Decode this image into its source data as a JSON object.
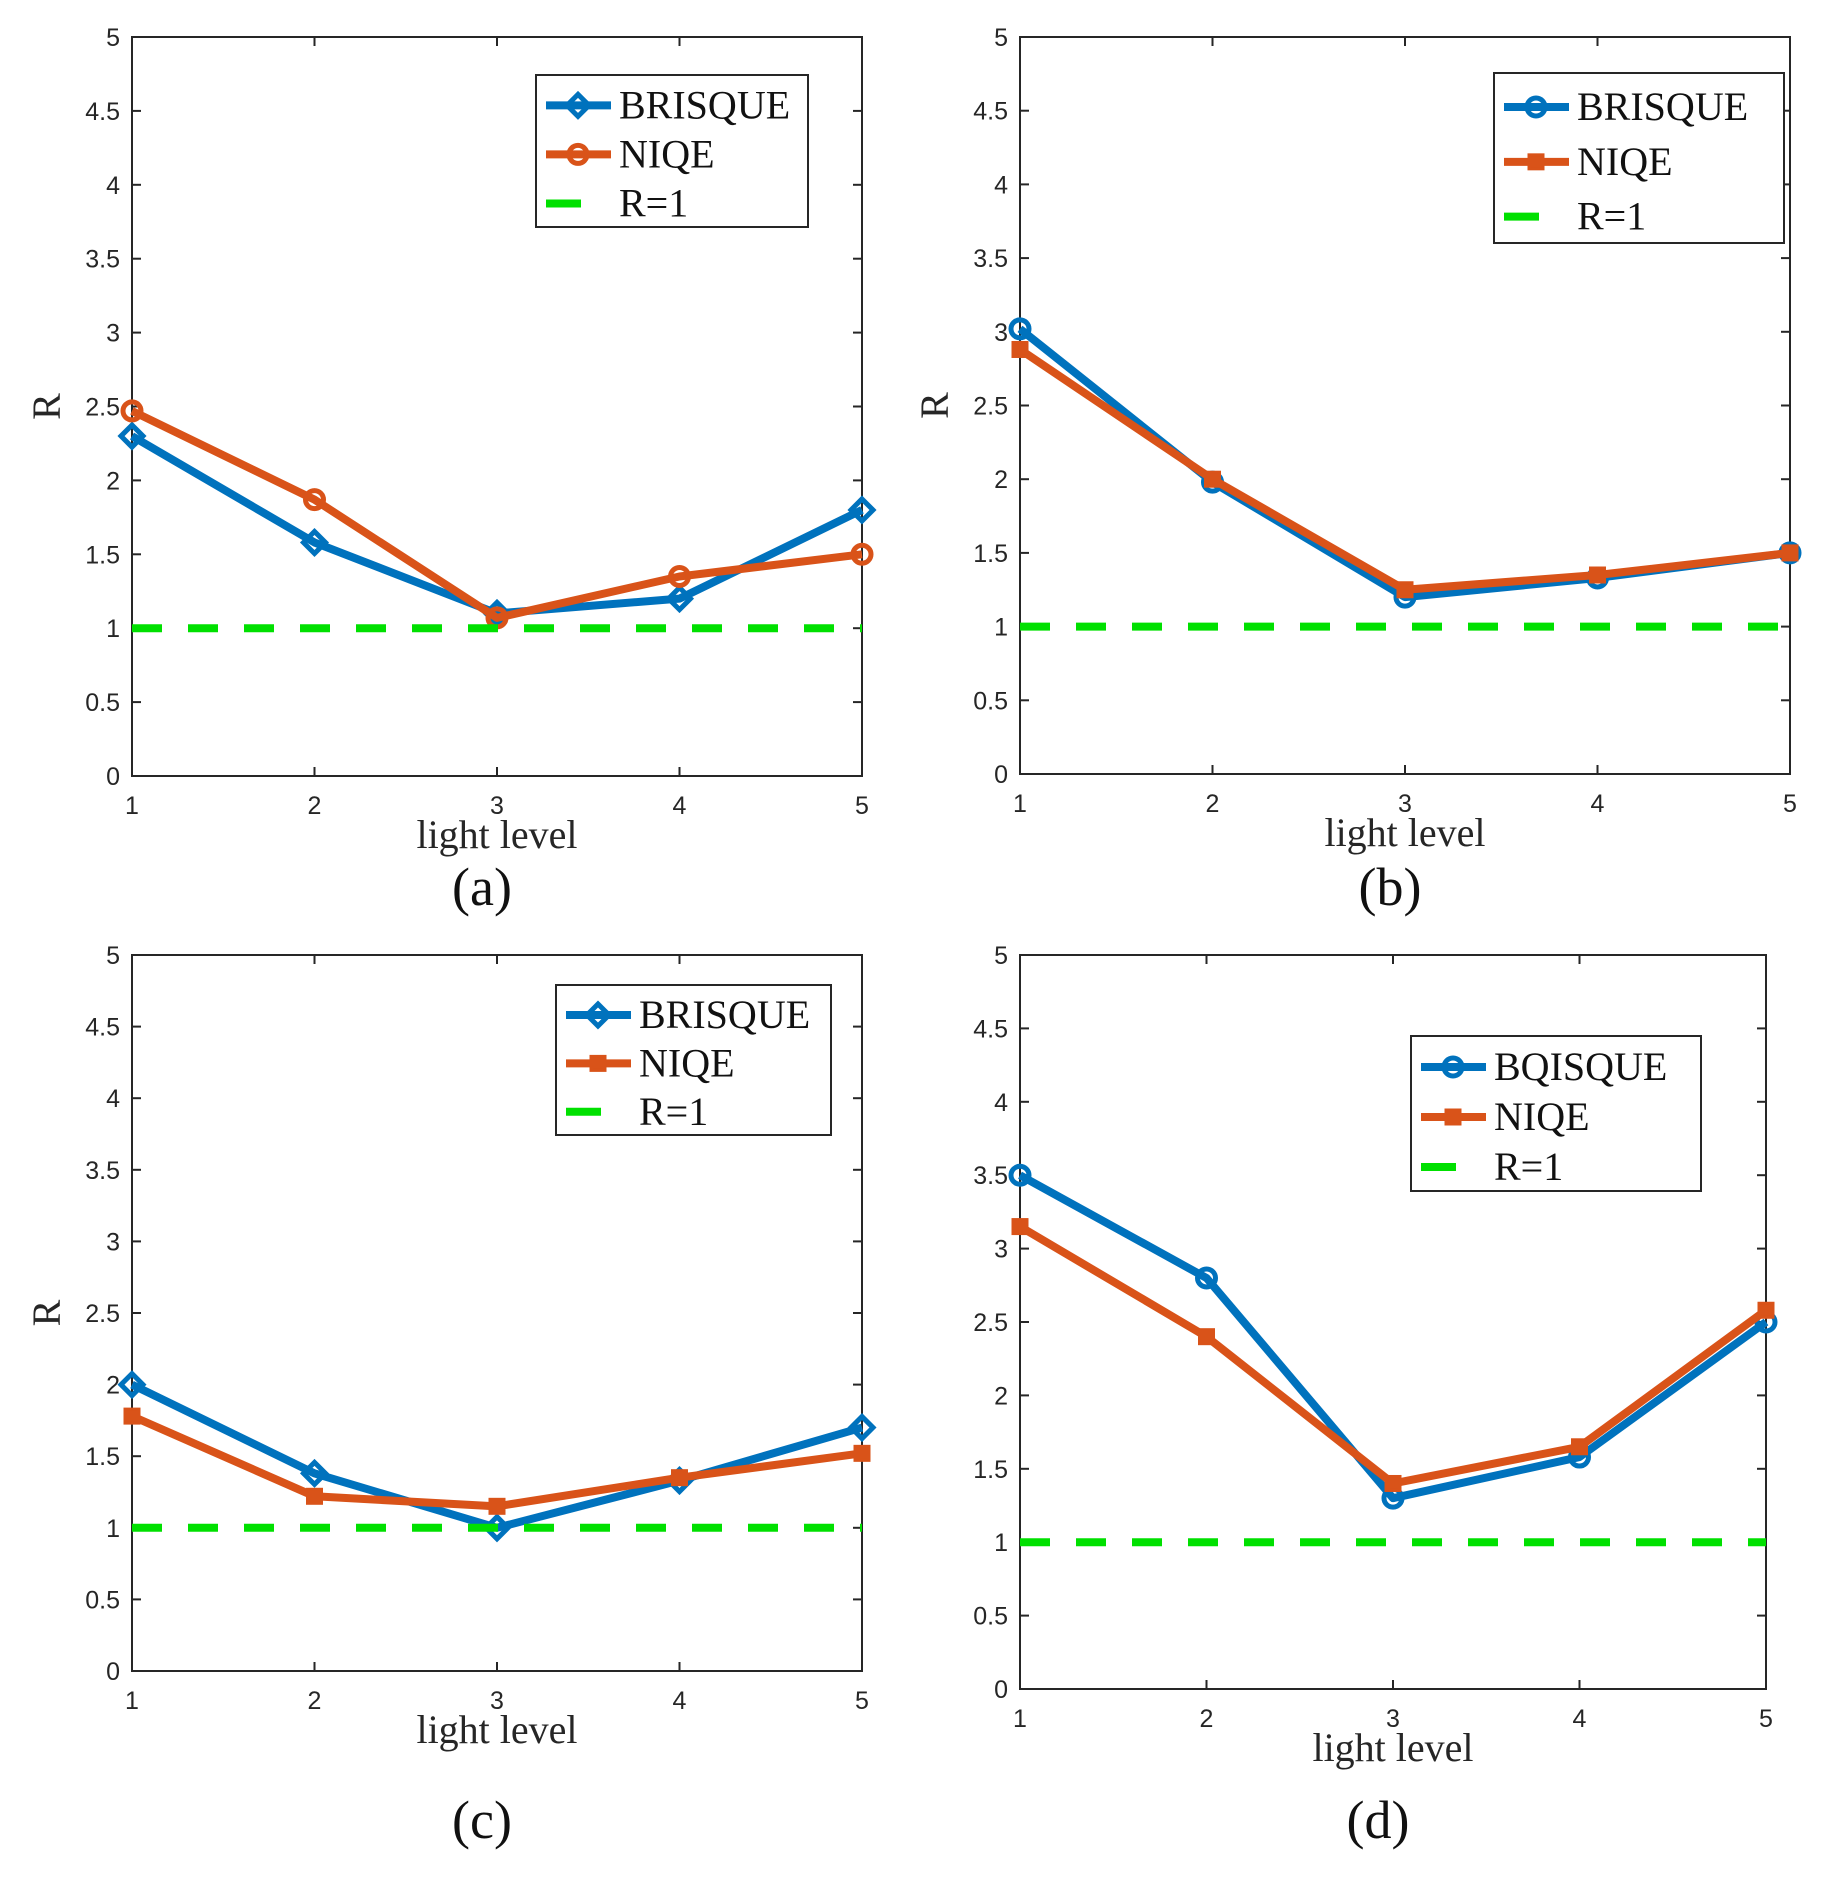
{
  "chart_data": [
    {
      "type": "line",
      "panel_label": "(a)",
      "xlabel": "light level",
      "ylabel": "R",
      "x": [
        1,
        2,
        3,
        4,
        5
      ],
      "xticks": [
        "1",
        "2",
        "3",
        "4",
        "5"
      ],
      "yticks": [
        "0",
        "0.5",
        "1",
        "1.5",
        "2",
        "2.5",
        "3",
        "3.5",
        "4",
        "4.5",
        "5"
      ],
      "xlim": [
        1,
        5
      ],
      "ylim": [
        0,
        5
      ],
      "grid": false,
      "legend_position": "top-right",
      "series": [
        {
          "name": "BRISQUE",
          "values": [
            2.3,
            1.58,
            1.1,
            1.2,
            1.8
          ],
          "color": "#0072BD",
          "marker": "diamond"
        },
        {
          "name": "NIQE",
          "values": [
            2.47,
            1.87,
            1.07,
            1.35,
            1.5
          ],
          "color": "#D95319",
          "marker": "circle"
        },
        {
          "name": "R=1",
          "values": [
            1,
            1,
            1,
            1,
            1
          ],
          "color": "#00E000",
          "dashed": true
        }
      ]
    },
    {
      "type": "line",
      "panel_label": "(b)",
      "xlabel": "light level",
      "ylabel": "R",
      "x": [
        1,
        2,
        3,
        4,
        5
      ],
      "xticks": [
        "1",
        "2",
        "3",
        "4",
        "5"
      ],
      "yticks": [
        "0",
        "0.5",
        "1",
        "1.5",
        "2",
        "2.5",
        "3",
        "3.5",
        "4",
        "4.5",
        "5"
      ],
      "xlim": [
        1,
        5
      ],
      "ylim": [
        0,
        5
      ],
      "grid": false,
      "legend_position": "top-right",
      "series": [
        {
          "name": "BRISQUE",
          "values": [
            3.02,
            1.98,
            1.2,
            1.33,
            1.5
          ],
          "color": "#0072BD",
          "marker": "circle"
        },
        {
          "name": "NIQE",
          "values": [
            2.88,
            2.0,
            1.25,
            1.35,
            1.5
          ],
          "color": "#D95319",
          "marker": "square"
        },
        {
          "name": "R=1",
          "values": [
            1,
            1,
            1,
            1,
            1
          ],
          "color": "#00E000",
          "dashed": true
        }
      ]
    },
    {
      "type": "line",
      "panel_label": "(c)",
      "xlabel": "light level",
      "ylabel": "R",
      "x": [
        1,
        2,
        3,
        4,
        5
      ],
      "xticks": [
        "1",
        "2",
        "3",
        "4",
        "5"
      ],
      "yticks": [
        "0",
        "0.5",
        "1",
        "1.5",
        "2",
        "2.5",
        "3",
        "3.5",
        "4",
        "4.5",
        "5"
      ],
      "xlim": [
        1,
        5
      ],
      "ylim": [
        0,
        5
      ],
      "grid": false,
      "legend_position": "top-right",
      "series": [
        {
          "name": "BRISQUE",
          "values": [
            2.0,
            1.38,
            1.0,
            1.33,
            1.7
          ],
          "color": "#0072BD",
          "marker": "diamond"
        },
        {
          "name": "NIQE",
          "values": [
            1.78,
            1.22,
            1.15,
            1.35,
            1.52
          ],
          "color": "#D95319",
          "marker": "square"
        },
        {
          "name": "R=1",
          "values": [
            1,
            1,
            1,
            1,
            1
          ],
          "color": "#00E000",
          "dashed": true
        }
      ]
    },
    {
      "type": "line",
      "panel_label": "(d)",
      "xlabel": "light level",
      "ylabel": "",
      "x": [
        1,
        2,
        3,
        4,
        5
      ],
      "xticks": [
        "1",
        "2",
        "3",
        "4",
        "5"
      ],
      "yticks": [
        "0",
        "0.5",
        "1",
        "1.5",
        "2",
        "2.5",
        "3",
        "3.5",
        "4",
        "4.5",
        "5"
      ],
      "xlim": [
        1,
        5
      ],
      "ylim": [
        0,
        5
      ],
      "grid": false,
      "legend_position": "top-right",
      "series": [
        {
          "name": "BQISQUE",
          "values": [
            3.5,
            2.8,
            1.3,
            1.58,
            2.5
          ],
          "color": "#0072BD",
          "marker": "circle"
        },
        {
          "name": "NIQE",
          "values": [
            3.15,
            2.4,
            1.4,
            1.65,
            2.58
          ],
          "color": "#D95319",
          "marker": "square"
        },
        {
          "name": "R=1",
          "values": [
            1,
            1,
            1,
            1,
            1
          ],
          "color": "#00E000",
          "dashed": true
        }
      ]
    }
  ]
}
